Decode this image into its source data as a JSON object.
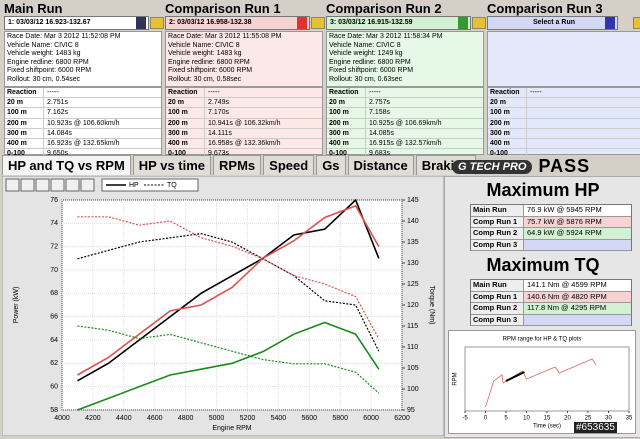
{
  "runs": [
    {
      "title": "Main Run",
      "selector": "1:  03/03/12 16.923-132.67",
      "info": [
        "Race Date: Mar 3 2012 11:52:08 PM",
        "Vehicle Name: CIVIC 8",
        "Vehicle weight: 1483 kg",
        "Engine redline: 6800 RPM",
        "Fixed shiftpoint: 6000 RPM",
        "Rollout: 30 cm, 0.54sec"
      ],
      "rows": [
        [
          "Reaction",
          "-----"
        ],
        [
          "20 m",
          "2.751s"
        ],
        [
          "100 m",
          "7.162s"
        ],
        [
          "200 m",
          "10.923s @ 106.60km/h"
        ],
        [
          "300 m",
          "14.084s"
        ],
        [
          "400 m",
          "16.923s @ 132.65km/h"
        ],
        [
          "0-100",
          "9.650s"
        ]
      ]
    },
    {
      "title": "Comparison Run 1",
      "selector": "2:  03/03/12 16.958-132.38",
      "info": [
        "Race Date: Mar 3 2012 11:55:08 PM",
        "Vehicle Name: CIVIC 8",
        "Vehicle weight: 1483 kg",
        "Engine redline: 6800 RPM",
        "Fixed shiftpoint: 6000 RPM",
        "Rollout: 30 cm, 0.58sec"
      ],
      "rows": [
        [
          "Reaction",
          "-----"
        ],
        [
          "20 m",
          "2.749s"
        ],
        [
          "100 m",
          "7.170s"
        ],
        [
          "200 m",
          "10.941s @ 106.32km/h"
        ],
        [
          "300 m",
          "14.111s"
        ],
        [
          "400 m",
          "16.958s @ 132.36km/h"
        ],
        [
          "0-100",
          "9.673s"
        ]
      ]
    },
    {
      "title": "Comparison Run 2",
      "selector": "3:  03/03/12 16.915-132.59",
      "info": [
        "Race Date: Mar 3 2012 11:58:34 PM",
        "Vehicle Name: CIVIC 8",
        "Vehicle weight: 1249 kg",
        "Engine redline: 6800 RPM",
        "Fixed shiftpoint: 6000 RPM",
        "Rollout: 30 cm, 0.63sec"
      ],
      "rows": [
        [
          "Reaction",
          "-----"
        ],
        [
          "20 m",
          "2.757s"
        ],
        [
          "100 m",
          "7.158s"
        ],
        [
          "200 m",
          "10.925s @ 106.69km/h"
        ],
        [
          "300 m",
          "14.085s"
        ],
        [
          "400 m",
          "16.915s @ 132.57km/h"
        ],
        [
          "0-100",
          "9.683s"
        ]
      ]
    },
    {
      "title": "Comparison Run 3",
      "selector": "Select a Run",
      "rows": [
        [
          "Reaction",
          "-----"
        ]
      ]
    }
  ],
  "tabs": [
    "HP and TQ vs RPM",
    "HP vs time",
    "RPMs",
    "Speed",
    "Gs",
    "Distance",
    "Braking"
  ],
  "logo": {
    "brand": "G TECH PRO",
    "product": "PASS"
  },
  "chart": {
    "type": "line",
    "ylabel": "Power (kW)",
    "y2label": "Torque (Nm)",
    "xlabel": "Engine RPM",
    "legend": [
      "HP",
      "TQ"
    ],
    "xlim": [
      4000,
      6200
    ],
    "xticks": [
      4000,
      4200,
      4400,
      4600,
      4800,
      5000,
      5200,
      5400,
      5600,
      5800,
      6000,
      6200
    ],
    "ylim": [
      58,
      76
    ],
    "yticks": [
      58,
      60,
      62,
      64,
      66,
      68,
      70,
      72,
      74,
      76
    ],
    "y2lim": [
      95,
      145
    ],
    "y2ticks": [
      95,
      100,
      105,
      110,
      115,
      120,
      125,
      130,
      135,
      140,
      145
    ],
    "grid": true,
    "x": [
      4100,
      4300,
      4500,
      4700,
      4900,
      5100,
      5300,
      5500,
      5700,
      5900,
      6050
    ],
    "series": [
      {
        "color": "#000000",
        "values": [
          60.5,
          62,
          64,
          66,
          68,
          69.5,
          71,
          73,
          73.5,
          76,
          71
        ]
      },
      {
        "color": "#e05050",
        "values": [
          61,
          62.5,
          64.5,
          66.5,
          67,
          68.5,
          71,
          72.5,
          74.5,
          75.5,
          72
        ]
      },
      {
        "color": "#1a8a1a",
        "values": [
          58,
          59,
          60,
          61,
          61.5,
          62,
          63,
          64.5,
          65.5,
          64.5,
          61.5
        ]
      },
      {
        "color": "#000000",
        "axis": "y2",
        "dashed": true,
        "values": [
          131,
          133,
          135,
          136,
          137,
          135,
          131,
          127,
          121,
          120,
          109
        ]
      },
      {
        "color": "#e05050",
        "axis": "y2",
        "dashed": true,
        "values": [
          141,
          141,
          139,
          140,
          136,
          134,
          131,
          127,
          125,
          122,
          112
        ]
      },
      {
        "color": "#1a8a1a",
        "axis": "y2",
        "dashed": true,
        "values": [
          115,
          114,
          112,
          113,
          111,
          109,
          107,
          106,
          106,
          104,
          99
        ]
      }
    ]
  },
  "max_hp": {
    "title": "Maximum HP",
    "rows": [
      [
        "Main Run",
        "76.9 kW @ 5945 RPM"
      ],
      [
        "Comp Run 1",
        "75.7 kW @ 5876 RPM"
      ],
      [
        "Comp Run 2",
        "64.9 kW @ 5924 RPM"
      ],
      [
        "Comp Run 3"
      ]
    ]
  },
  "max_tq": {
    "title": "Maximum TQ",
    "rows": [
      [
        "Main Run",
        "141.1 Nm @ 4599 RPM"
      ],
      [
        "Comp Run 1",
        "140.6 Nm @ 4820 RPM"
      ],
      [
        "Comp Run 2",
        "117.8 Nm @ 4295 RPM"
      ],
      [
        "Comp Run 3"
      ]
    ]
  },
  "rpm_chart": {
    "title": "RPM range for HP & TQ plots",
    "xlabel": "Time (sec)",
    "ylabel": "RPM",
    "xlim": [
      -5,
      35
    ],
    "xticks": [
      -5,
      0,
      5,
      10,
      15,
      20,
      25,
      30,
      35
    ]
  },
  "watermark": "#653635"
}
